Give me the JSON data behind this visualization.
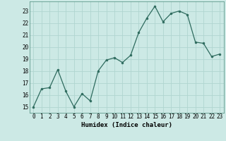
{
  "x": [
    0,
    1,
    2,
    3,
    4,
    5,
    6,
    7,
    8,
    9,
    10,
    11,
    12,
    13,
    14,
    15,
    16,
    17,
    18,
    19,
    20,
    21,
    22,
    23
  ],
  "y": [
    15.0,
    16.5,
    16.6,
    18.1,
    16.3,
    15.0,
    16.1,
    15.5,
    18.0,
    18.9,
    19.1,
    18.7,
    19.3,
    21.2,
    22.4,
    23.4,
    22.1,
    22.8,
    23.0,
    22.7,
    20.4,
    20.3,
    19.2,
    19.4
  ],
  "line_color": "#2e6b5e",
  "marker_color": "#2e6b5e",
  "bg_color": "#cce9e5",
  "grid_color": "#b0d5d0",
  "xlabel": "Humidex (Indice chaleur)",
  "ylim": [
    14.5,
    23.8
  ],
  "xlim": [
    -0.5,
    23.5
  ],
  "yticks": [
    15,
    16,
    17,
    18,
    19,
    20,
    21,
    22,
    23
  ],
  "xticks": [
    0,
    1,
    2,
    3,
    4,
    5,
    6,
    7,
    8,
    9,
    10,
    11,
    12,
    13,
    14,
    15,
    16,
    17,
    18,
    19,
    20,
    21,
    22,
    23
  ],
  "label_fontsize": 6.5,
  "tick_fontsize": 5.5
}
